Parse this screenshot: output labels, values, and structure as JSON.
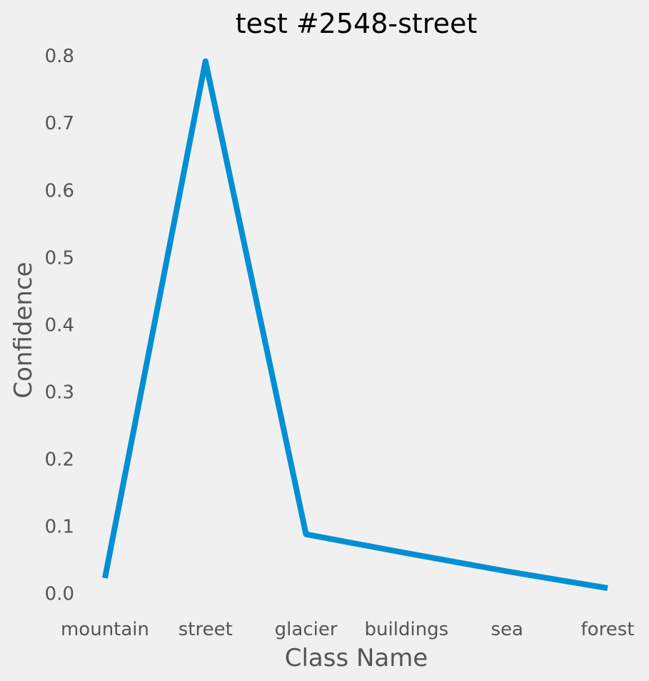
{
  "chart_data": {
    "type": "line",
    "title": "test #2548-street",
    "xlabel": "Class Name",
    "ylabel": "Confidence",
    "categories": [
      "mountain",
      "street",
      "glacier",
      "buildings",
      "sea",
      "forest"
    ],
    "series": [
      {
        "name": "Confidence",
        "values": [
          0.023,
          0.792,
          0.088,
          0.06,
          0.033,
          0.008
        ]
      }
    ],
    "ylim": [
      -0.025,
      0.83
    ],
    "yticks": [
      0.0,
      0.1,
      0.2,
      0.3,
      0.4,
      0.5,
      0.6,
      0.7,
      0.8
    ],
    "ytick_labels": [
      "0.0",
      "0.1",
      "0.2",
      "0.3",
      "0.4",
      "0.5",
      "0.6",
      "0.7",
      "0.8"
    ],
    "grid": false,
    "colors": {
      "line": "#008fd5",
      "background": "#f0f0f0",
      "text": "#555555",
      "title": "#000000"
    }
  }
}
